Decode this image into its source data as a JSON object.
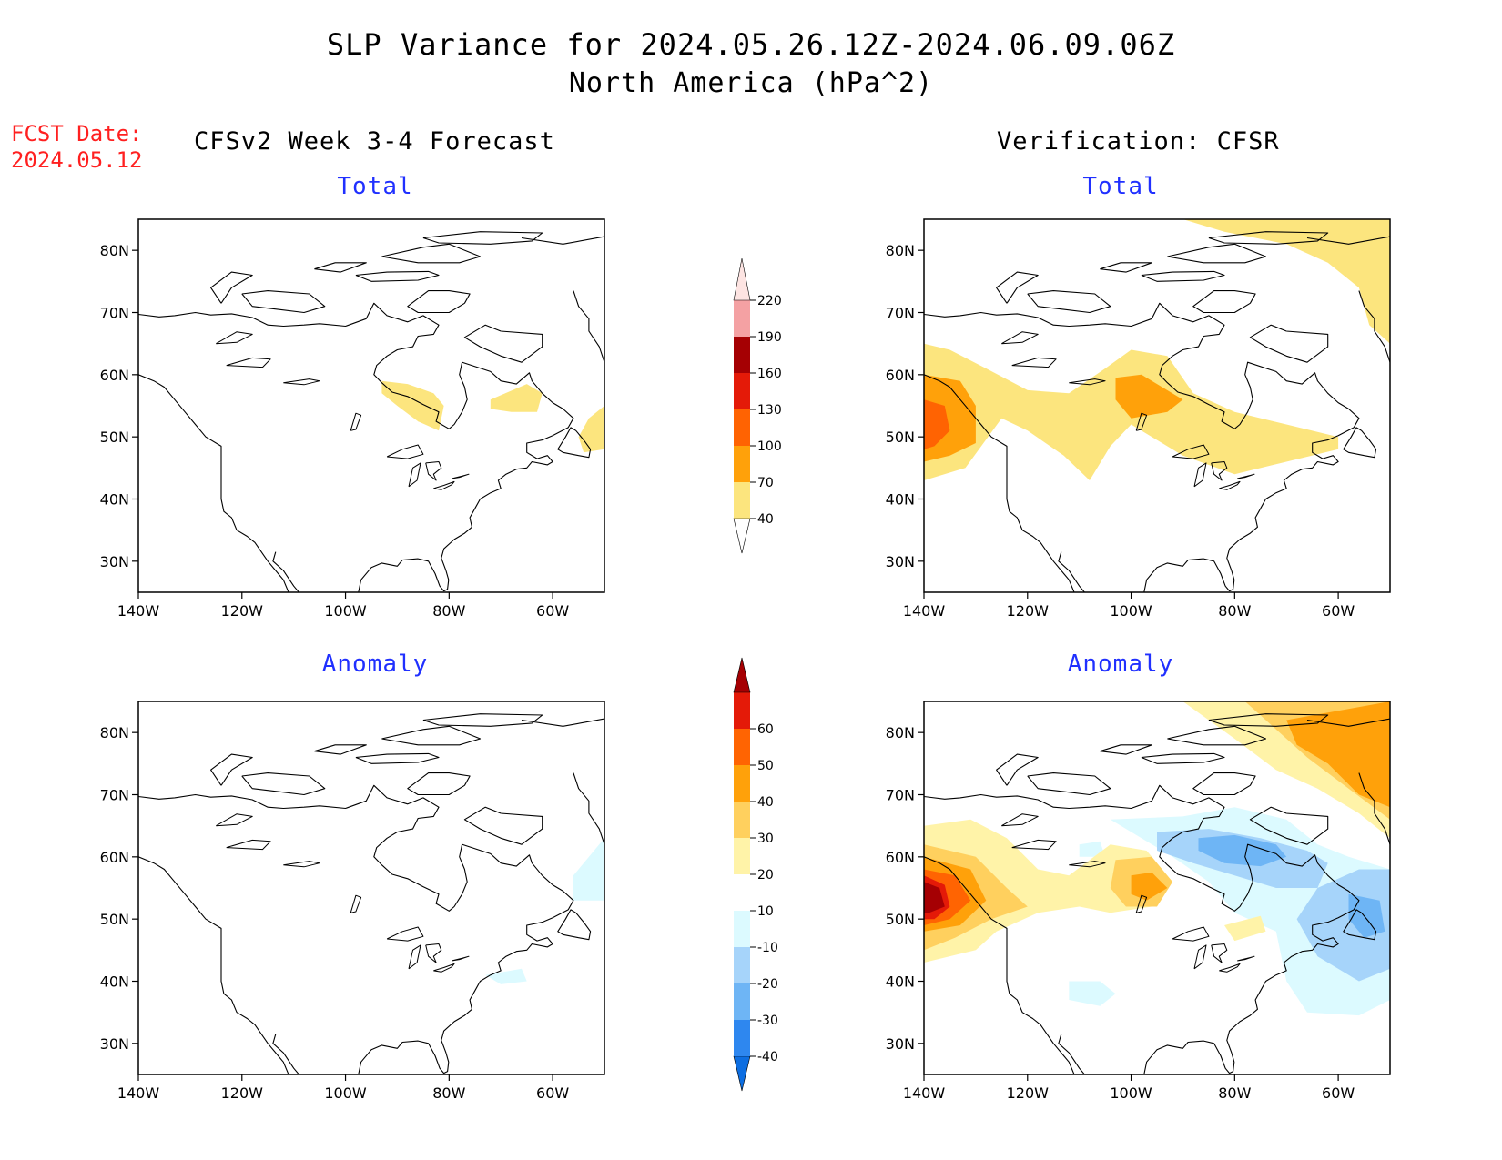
{
  "title": {
    "line1": "SLP Variance for 2024.05.26.12Z-2024.06.09.06Z",
    "line2": "North America (hPa^2)"
  },
  "fcst_date": {
    "label": "FCST Date:",
    "value": "2024.05.12"
  },
  "columns": {
    "left": "CFSv2 Week 3-4 Forecast",
    "right": "Verification: CFSR"
  },
  "panels": [
    {
      "id": "forecast-total",
      "title": "Total"
    },
    {
      "id": "verification-total",
      "title": "Total"
    },
    {
      "id": "forecast-anomaly",
      "title": "Anomaly"
    },
    {
      "id": "verification-anomaly",
      "title": "Anomaly"
    }
  ],
  "axes": {
    "lat_labels": [
      "80N",
      "70N",
      "60N",
      "50N",
      "40N",
      "30N"
    ],
    "lat_values": [
      80,
      70,
      60,
      50,
      40,
      30
    ],
    "lon_labels": [
      "140W",
      "120W",
      "100W",
      "80W",
      "60W"
    ],
    "lon_values": [
      -140,
      -120,
      -100,
      -80,
      -60
    ],
    "lon_range": [
      -140,
      -50
    ],
    "lat_range": [
      25,
      85
    ]
  },
  "colorbars": {
    "total": {
      "levels": [
        "40",
        "70",
        "100",
        "130",
        "160",
        "190",
        "220"
      ],
      "colors": [
        "#fce57e",
        "#ffa10a",
        "#ff6302",
        "#e41a08",
        "#a50003",
        "#f4a1a3",
        "#fde4e2"
      ]
    },
    "anomaly": {
      "levels": [
        "-40",
        "-30",
        "-20",
        "-10",
        "10",
        "20",
        "30",
        "40",
        "50",
        "60"
      ],
      "colors": [
        "#0d6ee1",
        "#2e87ef",
        "#6eb5f5",
        "#a6d4fa",
        "#dcfaff",
        "#ffffff",
        "#fff3a8",
        "#ffd05e",
        "#ffa10a",
        "#ff6402",
        "#e41a08",
        "#a50003"
      ]
    }
  }
}
